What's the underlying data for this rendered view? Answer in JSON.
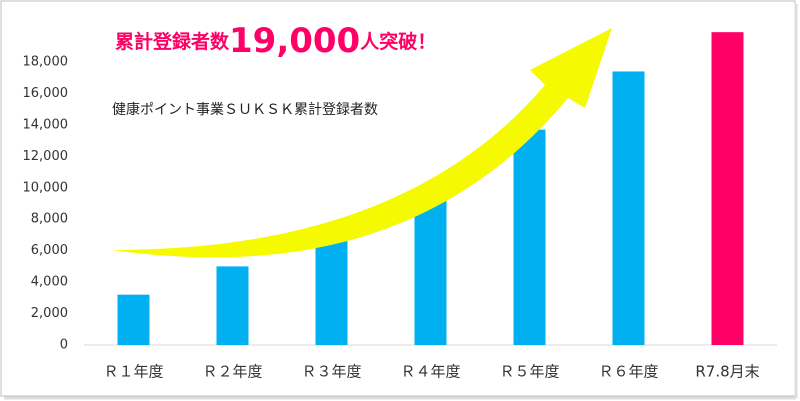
{
  "chart_data": {
    "type": "bar",
    "title_parts": [
      "累計登録者数",
      "19,000",
      "人突破！"
    ],
    "subtitle": "健康ポイント事業ＳＵＫＳＫ累計登録者数",
    "categories": [
      "Ｒ１年度",
      "Ｒ２年度",
      "Ｒ３年度",
      "Ｒ４年度",
      "Ｒ５年度",
      "Ｒ６年度",
      "R7.8月末"
    ],
    "values": [
      3200,
      5000,
      6800,
      9900,
      13700,
      17400,
      19900
    ],
    "colors": [
      "#00b0f0",
      "#00b0f0",
      "#00b0f0",
      "#00b0f0",
      "#00b0f0",
      "#00b0f0",
      "#ff0066"
    ],
    "ylim": [
      0,
      20000
    ],
    "yticks": [
      0,
      {
        "value": 2000,
        "label": "2,000"
      },
      {
        "value": 4000,
        "label": "4,000"
      },
      {
        "value": 6000,
        "label": "6,000"
      },
      {
        "value": 8000,
        "label": "8,000"
      },
      {
        "value": 10000,
        "label": "10,000"
      },
      {
        "value": 12000,
        "label": "12,000"
      },
      {
        "value": 14000,
        "label": "14,000"
      },
      {
        "value": 16000,
        "label": "16,000"
      },
      {
        "value": 18000,
        "label": "18,000"
      }
    ],
    "grid": false
  }
}
